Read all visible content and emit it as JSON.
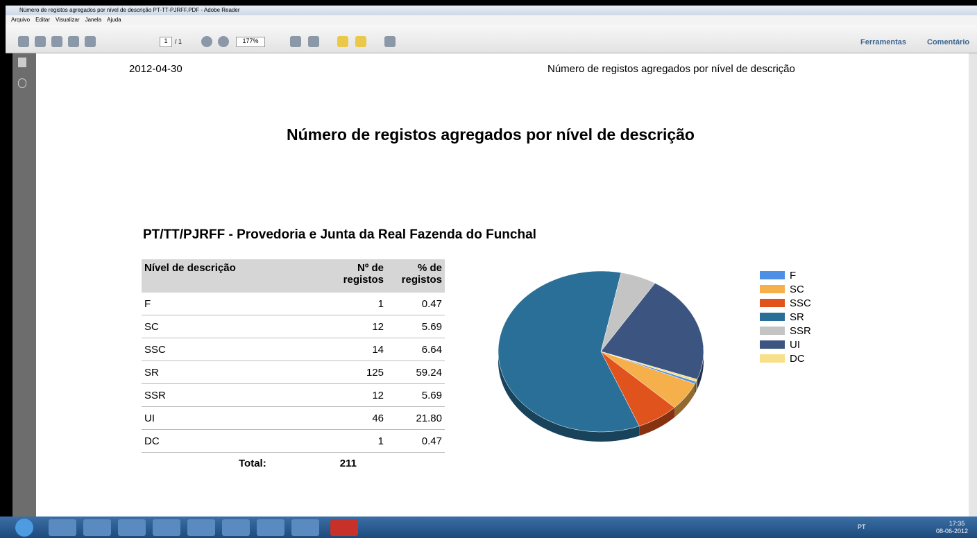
{
  "window": {
    "title": "Número de registos agregados por nível de descrição  PT-TT-PJRFF.PDF - Adobe Reader"
  },
  "menu": [
    "Arquivo",
    "Editar",
    "Visualizar",
    "Janela",
    "Ajuda"
  ],
  "toolbar": {
    "page": "1",
    "page_count": "/ 1",
    "zoom": "177%",
    "tools": "Ferramentas",
    "comment": "Comentário"
  },
  "document": {
    "date": "2012-04-30",
    "header": "Número de registos agregados por nível de descrição",
    "title": "Número de registos agregados por nível de descrição",
    "subtitle": "PT/TT/PJRFF - Provedoria e Junta da Real Fazenda do Funchal",
    "table": {
      "columns": [
        "Nível de descrição",
        "Nº de registos",
        "% de registos"
      ],
      "rows": [
        [
          "F",
          "1",
          "0.47"
        ],
        [
          "SC",
          "12",
          "5.69"
        ],
        [
          "SSC",
          "14",
          "6.64"
        ],
        [
          "SR",
          "125",
          "59.24"
        ],
        [
          "SSR",
          "12",
          "5.69"
        ],
        [
          "UI",
          "46",
          "21.80"
        ],
        [
          "DC",
          "1",
          "0.47"
        ]
      ],
      "total_label": "Total:",
      "total": "211"
    }
  },
  "chart_data": {
    "type": "pie",
    "categories": [
      "F",
      "SC",
      "SSC",
      "SR",
      "SSR",
      "UI",
      "DC"
    ],
    "values": [
      1,
      12,
      14,
      125,
      12,
      46,
      1
    ],
    "colors": [
      "#4e8fe6",
      "#f5b04c",
      "#e0531c",
      "#2a6f97",
      "#c4c4c4",
      "#3b5580",
      "#f8e08a"
    ],
    "legend": "right"
  },
  "taskbar": {
    "language": "PT",
    "time": "17:35",
    "date": "08-06-2012"
  }
}
